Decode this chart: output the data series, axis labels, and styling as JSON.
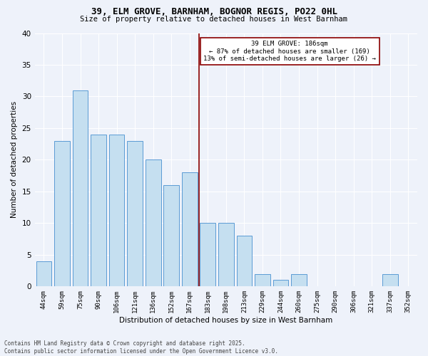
{
  "title1": "39, ELM GROVE, BARNHAM, BOGNOR REGIS, PO22 0HL",
  "title2": "Size of property relative to detached houses in West Barnham",
  "xlabel": "Distribution of detached houses by size in West Barnham",
  "ylabel": "Number of detached properties",
  "categories": [
    "44sqm",
    "59sqm",
    "75sqm",
    "90sqm",
    "106sqm",
    "121sqm",
    "136sqm",
    "152sqm",
    "167sqm",
    "183sqm",
    "198sqm",
    "213sqm",
    "229sqm",
    "244sqm",
    "260sqm",
    "275sqm",
    "290sqm",
    "306sqm",
    "321sqm",
    "337sqm",
    "352sqm"
  ],
  "values": [
    4,
    23,
    31,
    24,
    24,
    23,
    20,
    16,
    18,
    10,
    10,
    8,
    2,
    1,
    2,
    0,
    0,
    0,
    0,
    2,
    0
  ],
  "bar_color": "#c5dff0",
  "bar_edge_color": "#5b9bd5",
  "ref_line_color": "#8b0000",
  "annotation_box_color": "#8b0000",
  "ylim": [
    0,
    40
  ],
  "yticks": [
    0,
    5,
    10,
    15,
    20,
    25,
    30,
    35,
    40
  ],
  "background_color": "#eef2fa",
  "grid_color": "#ffffff",
  "footer1": "Contains HM Land Registry data © Crown copyright and database right 2025.",
  "footer2": "Contains public sector information licensed under the Open Government Licence v3.0.",
  "ref_line_label": "39 ELM GROVE: 186sqm",
  "ref_line_pct_smaller": "87% of detached houses are smaller (169)",
  "ref_line_pct_larger": "13% of semi-detached houses are larger (26)"
}
